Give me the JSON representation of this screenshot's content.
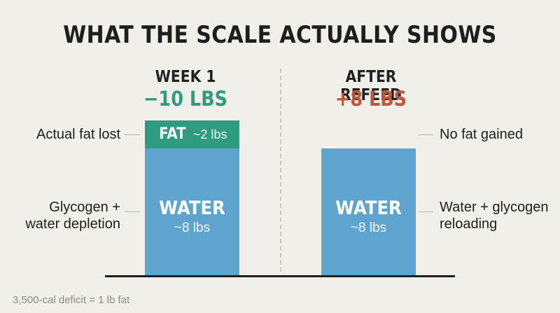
{
  "title": "WHAT THE SCALE ACTUALLY SHOWS",
  "colors": {
    "background": "#f1efe9",
    "water": "#5ea4cf",
    "fat": "#2f9b7f",
    "loss": "#2f9b7f",
    "gain": "#c2553a"
  },
  "week1": {
    "label": "WEEK 1",
    "change": "−10 LBS",
    "fat_segment": {
      "label": "FAT",
      "amount": "~2 lbs",
      "value": 2
    },
    "water_segment": {
      "label": "WATER",
      "amount": "~8 lbs",
      "value": 8
    },
    "annotations": {
      "fat": "Actual fat lost",
      "water_line1": "Glycogen +",
      "water_line2": "water depletion"
    }
  },
  "refeed": {
    "label": "AFTER REFEED",
    "change": "+8 LBS",
    "water_segment": {
      "label": "WATER",
      "amount": "~8 lbs",
      "value": 8
    },
    "annotations": {
      "top": "No fat gained",
      "water_line1": "Water + glycogen",
      "water_line2": "reloading"
    }
  },
  "footnote": "3,500-cal deficit = 1 lb fat"
}
